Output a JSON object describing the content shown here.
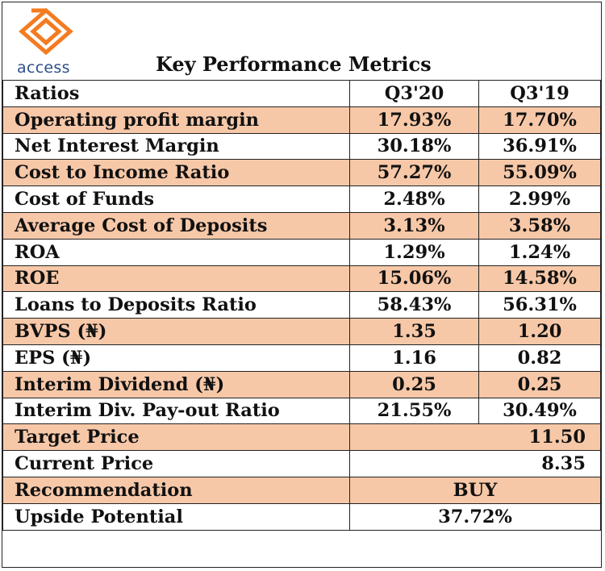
{
  "logo": {
    "text": "access",
    "color": "#f47b20",
    "text_color": "#2d4f8b"
  },
  "title": "Key Performance Metrics",
  "colors": {
    "shade": "#f7c8a8",
    "border": "#222222"
  },
  "headers": {
    "label": "Ratios",
    "c1": "Q3'20",
    "c2": "Q3'19"
  },
  "rows": [
    {
      "label": "Operating profit margin",
      "q320": "17.93%",
      "q319": "17.70%"
    },
    {
      "label": "Net Interest Margin",
      "q320": "30.18%",
      "q319": "36.91%"
    },
    {
      "label": "Cost to Income Ratio",
      "q320": "57.27%",
      "q319": "55.09%"
    },
    {
      "label": "Cost of Funds",
      "q320": "2.48%",
      "q319": "2.99%"
    },
    {
      "label": "Average Cost of Deposits",
      "q320": "3.13%",
      "q319": "3.58%"
    },
    {
      "label": "ROA",
      "q320": "1.29%",
      "q319": "1.24%"
    },
    {
      "label": "ROE",
      "q320": "15.06%",
      "q319": "14.58%"
    },
    {
      "label": "Loans to Deposits Ratio",
      "q320": "58.43%",
      "q319": "56.31%"
    },
    {
      "label": "BVPS (₦)",
      "q320": "1.35",
      "q319": "1.20"
    },
    {
      "label": "EPS (₦)",
      "q320": "1.16",
      "q319": "0.82"
    },
    {
      "label": "Interim Dividend (₦)",
      "q320": "0.25",
      "q319": "0.25"
    },
    {
      "label": "Interim Div. Pay-out Ratio",
      "q320": "21.55%",
      "q319": "30.49%"
    }
  ],
  "summary": {
    "target_price": {
      "label": "Target Price",
      "value": "11.50"
    },
    "current_price": {
      "label": "Current Price",
      "value": "8.35"
    },
    "recommendation": {
      "label": "Recommendation",
      "value": "BUY"
    },
    "upside": {
      "label": "Upside Potential",
      "value": "37.72%"
    }
  }
}
